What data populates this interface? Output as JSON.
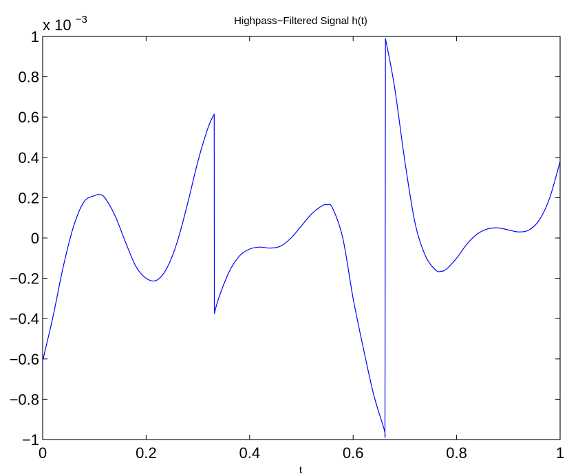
{
  "chart_data": {
    "type": "line",
    "title": "Highpass−Filtered Signal h(t)",
    "xlabel": "t",
    "ylabel": "",
    "xlim": [
      0,
      1
    ],
    "ylim": [
      -1,
      1
    ],
    "y_multiplier": {
      "base": "x 10",
      "exponent": "−3"
    },
    "x_ticks": [
      0,
      0.2,
      0.4,
      0.6,
      0.8,
      1
    ],
    "x_tick_labels": [
      "0",
      "0.2",
      "0.4",
      "0.6",
      "0.8",
      "1"
    ],
    "y_ticks": [
      -1,
      -0.8,
      -0.6,
      -0.4,
      -0.2,
      0,
      0.2,
      0.4,
      0.6,
      0.8,
      1
    ],
    "y_tick_labels": [
      "−1",
      "−0.8",
      "−0.6",
      "−0.4",
      "−0.2",
      "0",
      "0.2",
      "0.4",
      "0.6",
      "0.8",
      "1"
    ],
    "grid": false,
    "series": [
      {
        "color": "#0000ff",
        "x": [
          0,
          0.02,
          0.04,
          0.06,
          0.08,
          0.1,
          0.11,
          0.12,
          0.14,
          0.16,
          0.18,
          0.2,
          0.22,
          0.24,
          0.26,
          0.28,
          0.3,
          0.32,
          0.3315,
          0.3318,
          0.34,
          0.36,
          0.38,
          0.4,
          0.42,
          0.44,
          0.46,
          0.48,
          0.5,
          0.52,
          0.54,
          0.55,
          0.56,
          0.58,
          0.6,
          0.62,
          0.64,
          0.66,
          0.6615,
          0.6625,
          0.68,
          0.7,
          0.72,
          0.74,
          0.76,
          0.77,
          0.78,
          0.8,
          0.82,
          0.84,
          0.86,
          0.88,
          0.9,
          0.92,
          0.94,
          0.96,
          0.98,
          1.0
        ],
        "y": [
          -0.61,
          -0.39,
          -0.14,
          0.06,
          0.18,
          0.21,
          0.215,
          0.2,
          0.11,
          -0.02,
          -0.14,
          -0.2,
          -0.21,
          -0.15,
          -0.02,
          0.17,
          0.38,
          0.55,
          0.615,
          -0.375,
          -0.3,
          -0.17,
          -0.09,
          -0.055,
          -0.045,
          -0.05,
          -0.04,
          0.0,
          0.06,
          0.12,
          0.16,
          0.165,
          0.15,
          0.0,
          -0.3,
          -0.55,
          -0.78,
          -0.95,
          -0.99,
          0.99,
          0.75,
          0.38,
          0.07,
          -0.09,
          -0.16,
          -0.165,
          -0.155,
          -0.1,
          -0.03,
          0.02,
          0.045,
          0.05,
          0.04,
          0.03,
          0.04,
          0.09,
          0.2,
          0.38
        ]
      }
    ]
  }
}
